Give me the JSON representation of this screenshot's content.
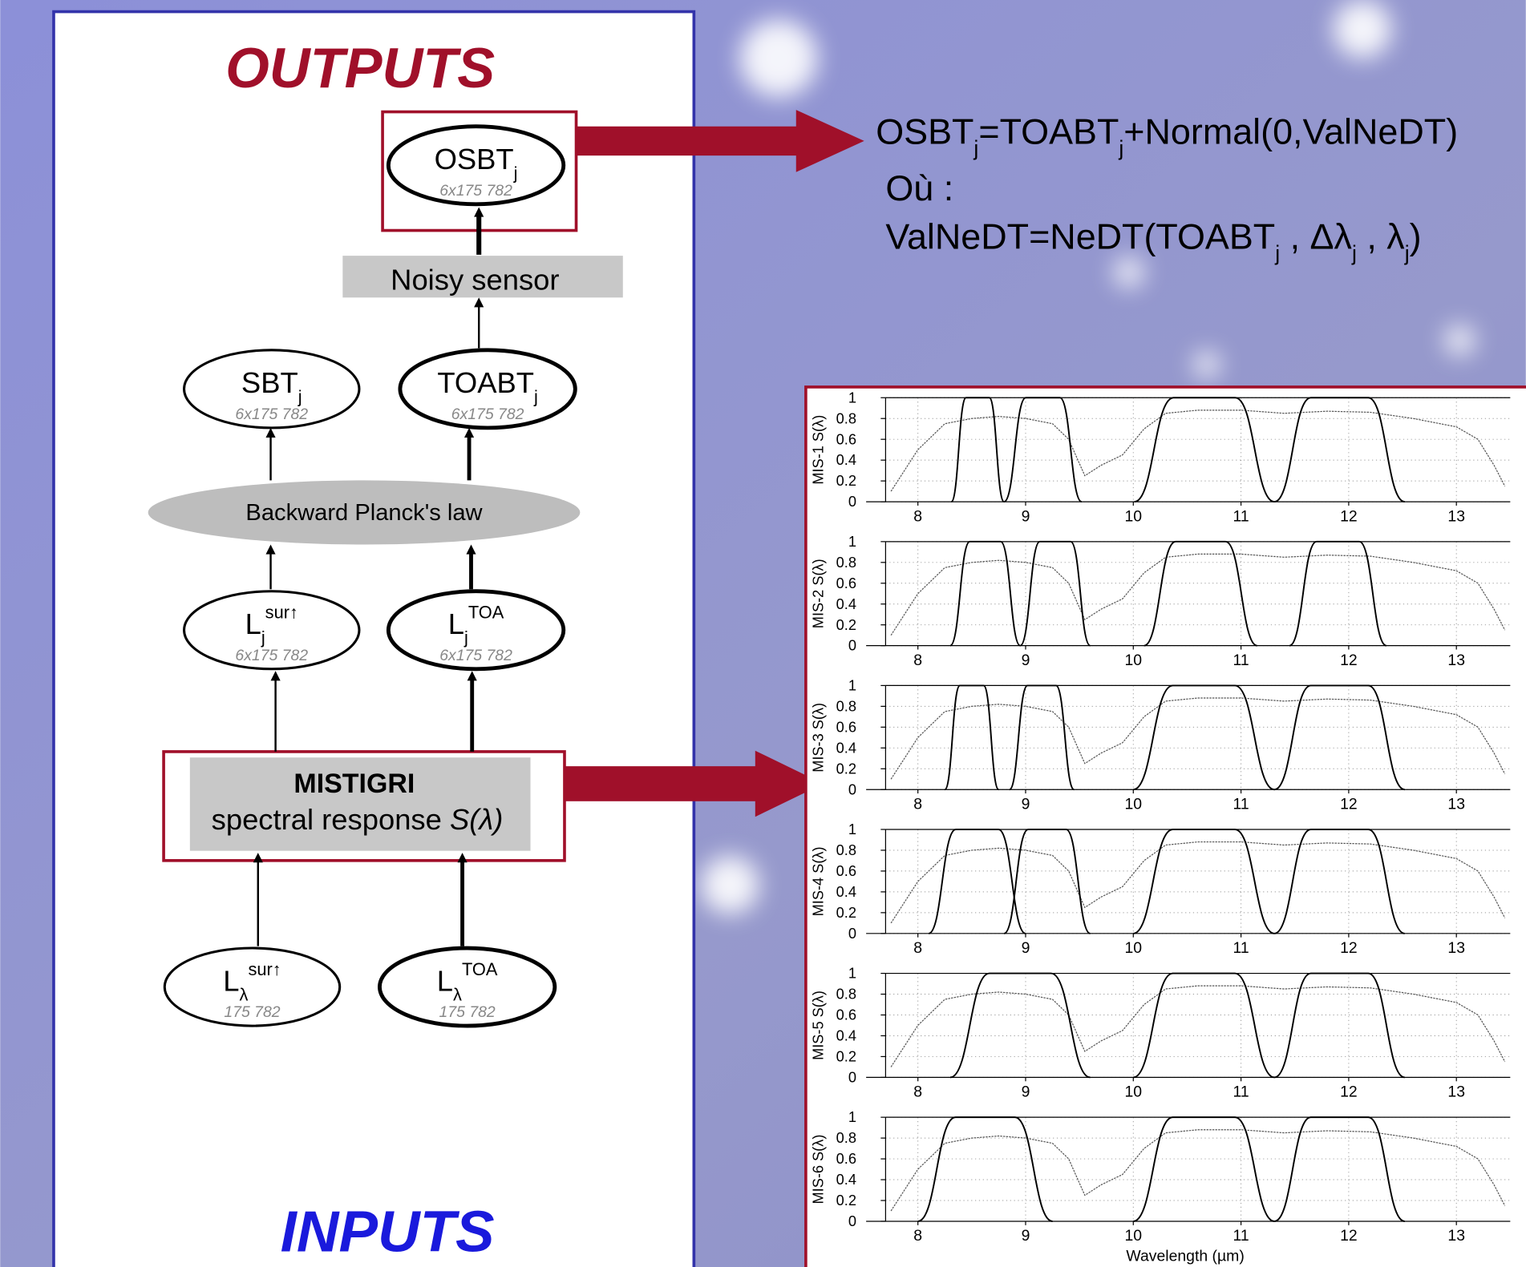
{
  "outputs_label": "OUTPUTS",
  "inputs_label": "INPUTS",
  "nodes": [
    {
      "main": "OSBT",
      "sub": "j",
      "size": "6x175 782"
    },
    {
      "main": "SBT",
      "sub": "j",
      "size": "6x175 782"
    },
    {
      "main": "TOABT",
      "sub": "j",
      "size": "6x175 782"
    },
    {
      "main": "L",
      "sub": "j",
      "sup": "sur↑",
      "size": "6x175 782"
    },
    {
      "main": "L",
      "sub": "j",
      "sup": "TOA",
      "size": "6x175 782"
    },
    {
      "main": "L",
      "sub": "λ",
      "sup": "sur↑",
      "size": "175 782"
    },
    {
      "main": "L",
      "sub": "λ",
      "sup": "TOA",
      "size": "175 782"
    }
  ],
  "noisy_sensor": "Noisy sensor",
  "planck": "Backward Planck's law",
  "mistigri": {
    "title": "MISTIGRI",
    "line": "spectral response ",
    "symbol": "S(λ)"
  },
  "equations": [
    [
      {
        "text": "OSBT"
      },
      {
        "sub": "j"
      },
      {
        "text": "=TOABT"
      },
      {
        "sub": "j"
      },
      {
        "text": "+Normal(0,ValNeDT)"
      }
    ],
    [
      {
        "text": "Où :"
      }
    ],
    [
      {
        "text": "ValNeDT=NeDT(TOABT"
      },
      {
        "sub": "j"
      },
      {
        "text": " , Δλ"
      },
      {
        "sub": "j"
      },
      {
        "text": " , λ"
      },
      {
        "sub": "j"
      },
      {
        "text": ")"
      }
    ]
  ],
  "spectral_plots": {
    "x_label": "Wavelength (µm)",
    "xlim": [
      7.7,
      13.5
    ],
    "xticks": [
      8,
      9,
      10,
      11,
      12,
      13
    ],
    "ylim": [
      0,
      1
    ],
    "yticks": [
      0,
      0.2,
      0.4,
      0.6,
      0.8,
      1
    ],
    "grid": true,
    "atmosphere": {
      "x": [
        7.75,
        8.0,
        8.25,
        8.5,
        8.75,
        9.0,
        9.25,
        9.4,
        9.55,
        9.7,
        9.9,
        10.1,
        10.3,
        10.6,
        11.0,
        11.4,
        11.8,
        12.2,
        12.6,
        13.0,
        13.2,
        13.35,
        13.45
      ],
      "values": [
        0.1,
        0.5,
        0.75,
        0.8,
        0.82,
        0.8,
        0.75,
        0.6,
        0.25,
        0.35,
        0.45,
        0.7,
        0.85,
        0.88,
        0.88,
        0.85,
        0.87,
        0.86,
        0.8,
        0.72,
        0.6,
        0.35,
        0.15
      ]
    },
    "panels": [
      {
        "y_label": "MIS-1 S(λ)",
        "filters": [
          {
            "from": 8.31,
            "to": 8.8,
            "peak": 1
          },
          {
            "from": 8.8,
            "to": 9.52,
            "peak": 1
          },
          {
            "from": 10.01,
            "to": 11.31,
            "peak": 1
          },
          {
            "from": 11.31,
            "to": 12.52,
            "peak": 1
          }
        ]
      },
      {
        "y_label": "MIS-2 S(λ)",
        "filters": [
          {
            "from": 8.3,
            "to": 8.95,
            "peak": 1
          },
          {
            "from": 8.95,
            "to": 9.6,
            "peak": 1
          },
          {
            "from": 10.1,
            "to": 11.15,
            "peak": 1
          },
          {
            "from": 11.45,
            "to": 12.35,
            "peak": 1
          }
        ]
      },
      {
        "y_label": "MIS-3 S(λ)",
        "filters": [
          {
            "from": 8.25,
            "to": 8.75,
            "peak": 1
          },
          {
            "from": 8.85,
            "to": 9.45,
            "peak": 1
          },
          {
            "from": 10.0,
            "to": 11.31,
            "peak": 1
          },
          {
            "from": 11.31,
            "to": 12.52,
            "peak": 1
          }
        ]
      },
      {
        "y_label": "MIS-4 S(λ)",
        "filters": [
          {
            "from": 8.1,
            "to": 9.0,
            "peak": 1
          },
          {
            "from": 8.8,
            "to": 9.6,
            "peak": 1
          },
          {
            "from": 10.0,
            "to": 11.31,
            "peak": 1
          },
          {
            "from": 11.31,
            "to": 12.52,
            "peak": 1
          }
        ]
      },
      {
        "y_label": "MIS-5 S(λ)",
        "filters": [
          {
            "from": 8.3,
            "to": 9.6,
            "peak": 1
          },
          {
            "from": 10.0,
            "to": 11.31,
            "peak": 1
          },
          {
            "from": 11.31,
            "to": 12.52,
            "peak": 1
          }
        ]
      },
      {
        "y_label": "MIS-6 S(λ)",
        "filters": [
          {
            "from": 8.0,
            "to": 9.25,
            "peak": 1
          },
          {
            "from": 10.0,
            "to": 11.31,
            "peak": 1
          },
          {
            "from": 11.31,
            "to": 12.52,
            "peak": 1
          }
        ]
      }
    ]
  }
}
